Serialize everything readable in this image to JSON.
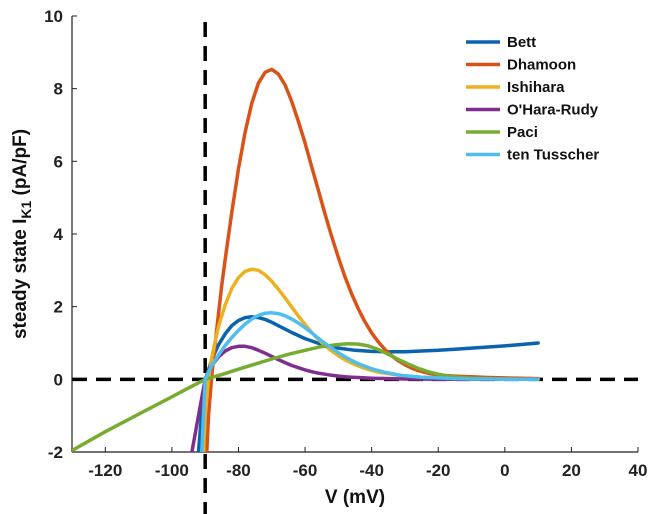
{
  "chart_data": {
    "type": "line",
    "xlabel": "V (mV)",
    "ylabel": {
      "main": "steady state I",
      "sub": "K1",
      "unit": " (pA/pF)"
    },
    "xlim": [
      -130,
      40
    ],
    "ylim": [
      -2,
      10
    ],
    "x_ticks": [
      -120,
      -100,
      -80,
      -60,
      -40,
      -20,
      0,
      20,
      40
    ],
    "y_ticks": [
      -2,
      0,
      2,
      4,
      6,
      8,
      10
    ],
    "grid": false,
    "legend_position": "top-right",
    "reference_lines": [
      {
        "orientation": "vertical",
        "x": -90,
        "style": "dashed",
        "color": "#000000"
      },
      {
        "orientation": "horizontal",
        "y": 0,
        "style": "dashed",
        "color": "#000000"
      }
    ],
    "series": [
      {
        "name": "Bett",
        "color": "#0b62ae",
        "x": [
          -92,
          -91,
          -90,
          -89,
          -88,
          -86,
          -84,
          -82,
          -80,
          -78,
          -76,
          -74,
          -72,
          -70,
          -67,
          -64,
          -60,
          -55,
          -50,
          -45,
          -40,
          -35,
          -30,
          -25,
          -20,
          -15,
          -10,
          -5,
          0,
          5,
          10
        ],
        "y": [
          -2.0,
          -0.9,
          0.0,
          0.25,
          0.55,
          0.95,
          1.25,
          1.48,
          1.62,
          1.7,
          1.72,
          1.7,
          1.65,
          1.57,
          1.43,
          1.29,
          1.12,
          0.96,
          0.86,
          0.8,
          0.77,
          0.76,
          0.76,
          0.78,
          0.8,
          0.83,
          0.86,
          0.89,
          0.92,
          0.96,
          1.0
        ]
      },
      {
        "name": "Dhamoon",
        "color": "#d95319",
        "x": [
          -89.5,
          -89,
          -88,
          -87,
          -86,
          -85,
          -84,
          -82,
          -80,
          -78,
          -76,
          -74,
          -72,
          -70,
          -68,
          -66,
          -64,
          -62,
          -60,
          -58,
          -56,
          -54,
          -52,
          -50,
          -48,
          -46,
          -44,
          -42,
          -40,
          -38,
          -36,
          -34,
          -32,
          -30,
          -28,
          -26,
          -24,
          -22,
          -20,
          -15,
          -10,
          -5,
          0,
          5,
          10
        ],
        "y": [
          -2.0,
          -1.0,
          0.1,
          1.0,
          1.8,
          2.6,
          3.3,
          4.6,
          5.8,
          6.8,
          7.6,
          8.15,
          8.45,
          8.53,
          8.4,
          8.1,
          7.65,
          7.1,
          6.5,
          5.85,
          5.2,
          4.55,
          3.93,
          3.35,
          2.82,
          2.35,
          1.94,
          1.58,
          1.28,
          1.03,
          0.82,
          0.65,
          0.51,
          0.4,
          0.31,
          0.24,
          0.19,
          0.15,
          0.12,
          0.09,
          0.07,
          0.05,
          0.04,
          0.03,
          0.02
        ]
      },
      {
        "name": "Ishihara",
        "color": "#edb120",
        "x": [
          -90.5,
          -90,
          -89,
          -88,
          -87,
          -86,
          -84,
          -82,
          -80,
          -78,
          -76,
          -74,
          -72,
          -70,
          -68,
          -66,
          -64,
          -62,
          -60,
          -58,
          -56,
          -54,
          -52,
          -50,
          -48,
          -46,
          -44,
          -42,
          -40,
          -38,
          -36,
          -34,
          -32,
          -30,
          -25,
          -20,
          -15,
          -10,
          -5,
          0,
          5,
          10
        ],
        "y": [
          -2.0,
          -1.0,
          0.0,
          0.6,
          1.05,
          1.45,
          2.05,
          2.5,
          2.8,
          2.97,
          3.03,
          3.0,
          2.88,
          2.7,
          2.48,
          2.24,
          1.99,
          1.74,
          1.51,
          1.29,
          1.1,
          0.93,
          0.78,
          0.65,
          0.54,
          0.45,
          0.37,
          0.3,
          0.25,
          0.2,
          0.17,
          0.14,
          0.11,
          0.09,
          0.06,
          0.04,
          0.03,
          0.02,
          0.01,
          0.01,
          0.0,
          0.0
        ]
      },
      {
        "name": "O'Hara-Rudy",
        "color": "#7e2f8e",
        "x": [
          -94,
          -93,
          -92,
          -91,
          -90,
          -89,
          -88,
          -86,
          -84,
          -82,
          -80,
          -78,
          -76,
          -74,
          -72,
          -70,
          -68,
          -66,
          -64,
          -62,
          -60,
          -58,
          -56,
          -54,
          -52,
          -50,
          -48,
          -46,
          -44,
          -42,
          -40,
          -35,
          -30,
          -25,
          -20,
          -15,
          -10,
          -5,
          0,
          5,
          10
        ],
        "y": [
          -2.0,
          -1.5,
          -1.0,
          -0.5,
          0.0,
          0.22,
          0.38,
          0.62,
          0.78,
          0.87,
          0.91,
          0.91,
          0.87,
          0.8,
          0.72,
          0.63,
          0.54,
          0.46,
          0.38,
          0.32,
          0.26,
          0.21,
          0.17,
          0.14,
          0.11,
          0.09,
          0.07,
          0.06,
          0.05,
          0.04,
          0.03,
          0.02,
          0.01,
          0.01,
          0.0,
          0.0,
          0.0,
          0.0,
          0.0,
          0.0,
          0.0
        ]
      },
      {
        "name": "Paci",
        "color": "#77ac30",
        "x": [
          -130,
          -120,
          -110,
          -100,
          -95,
          -90,
          -85,
          -80,
          -75,
          -70,
          -65,
          -60,
          -55,
          -50,
          -47,
          -44,
          -41,
          -38,
          -35,
          -32,
          -29,
          -26,
          -23,
          -20,
          -17,
          -14,
          -10,
          -5,
          0,
          5,
          10
        ],
        "y": [
          -1.96,
          -1.44,
          -0.96,
          -0.48,
          -0.24,
          0.0,
          0.13,
          0.28,
          0.42,
          0.56,
          0.69,
          0.8,
          0.9,
          0.96,
          0.98,
          0.97,
          0.92,
          0.82,
          0.69,
          0.55,
          0.42,
          0.3,
          0.21,
          0.14,
          0.09,
          0.06,
          0.03,
          0.02,
          0.01,
          0.0,
          0.0
        ]
      },
      {
        "name": "ten Tusscher",
        "color": "#4dbeee",
        "x": [
          -91,
          -90.5,
          -90,
          -89,
          -88,
          -86,
          -84,
          -82,
          -80,
          -78,
          -76,
          -74,
          -72,
          -70,
          -68,
          -66,
          -64,
          -62,
          -60,
          -58,
          -56,
          -54,
          -52,
          -50,
          -48,
          -46,
          -44,
          -42,
          -40,
          -38,
          -36,
          -34,
          -32,
          -30,
          -25,
          -20,
          -15,
          -10,
          -5,
          0,
          5,
          10
        ],
        "y": [
          -2.0,
          -1.0,
          0.0,
          0.2,
          0.38,
          0.67,
          0.93,
          1.15,
          1.35,
          1.52,
          1.66,
          1.76,
          1.82,
          1.83,
          1.81,
          1.75,
          1.66,
          1.55,
          1.42,
          1.28,
          1.13,
          0.99,
          0.86,
          0.73,
          0.62,
          0.52,
          0.43,
          0.36,
          0.29,
          0.24,
          0.19,
          0.16,
          0.12,
          0.1,
          0.06,
          0.04,
          0.02,
          0.01,
          0.01,
          0.0,
          0.0,
          0.0
        ]
      }
    ]
  }
}
